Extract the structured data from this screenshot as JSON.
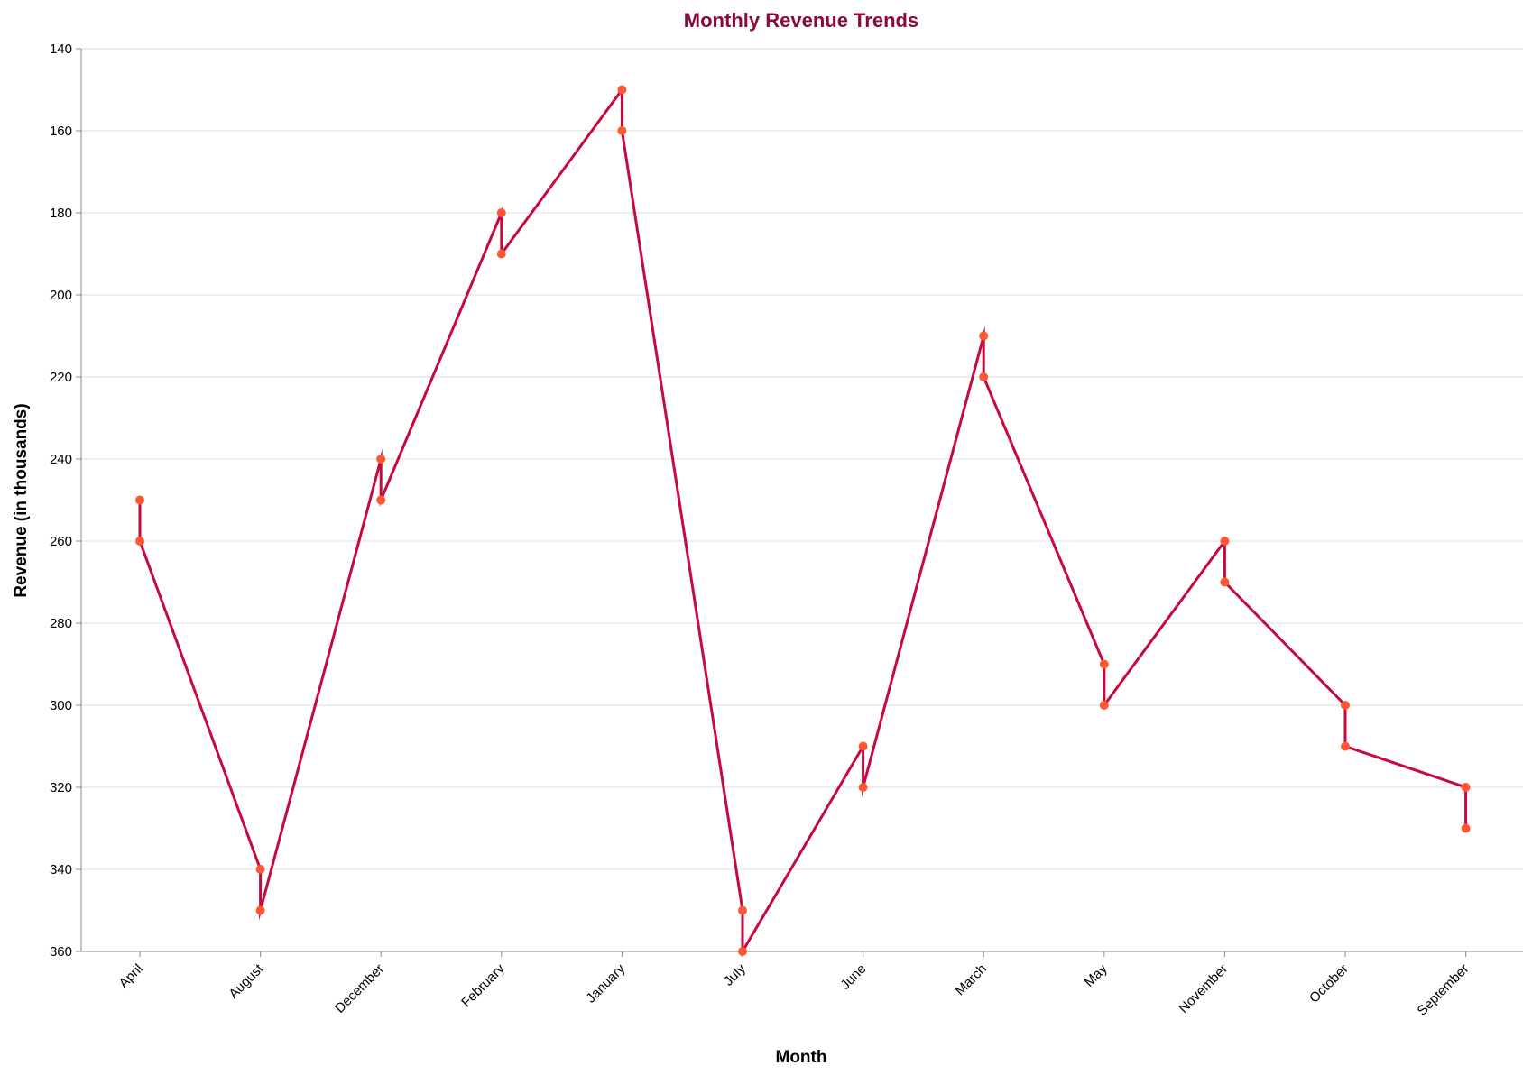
{
  "chart_data": {
    "type": "line",
    "title": "Monthly Revenue Trends",
    "xlabel": "Month",
    "ylabel": "Revenue (in thousands)",
    "categories": [
      "April",
      "August",
      "December",
      "February",
      "January",
      "July",
      "June",
      "March",
      "May",
      "November",
      "October",
      "September"
    ],
    "points": [
      {
        "month": "April",
        "values": [
          250,
          260
        ]
      },
      {
        "month": "August",
        "values": [
          340,
          350
        ]
      },
      {
        "month": "December",
        "values": [
          240,
          250
        ]
      },
      {
        "month": "February",
        "values": [
          180,
          190
        ]
      },
      {
        "month": "January",
        "values": [
          150,
          160
        ]
      },
      {
        "month": "July",
        "values": [
          350,
          360
        ]
      },
      {
        "month": "June",
        "values": [
          310,
          320
        ]
      },
      {
        "month": "March",
        "values": [
          210,
          220
        ]
      },
      {
        "month": "May",
        "values": [
          290,
          300
        ]
      },
      {
        "month": "November",
        "values": [
          260,
          270
        ]
      },
      {
        "month": "October",
        "values": [
          300,
          310
        ]
      },
      {
        "month": "September",
        "values": [
          320,
          330
        ]
      }
    ],
    "y_reversed": true,
    "ylim": [
      140,
      360
    ],
    "y_ticks": [
      140,
      160,
      180,
      200,
      220,
      240,
      260,
      280,
      300,
      320,
      340,
      360
    ],
    "grid": true,
    "colors": {
      "line": "#c70a3e",
      "point": "#ff5733",
      "title": "#8b0a3e",
      "grid": "#dddddd",
      "axis": "#888888"
    }
  }
}
